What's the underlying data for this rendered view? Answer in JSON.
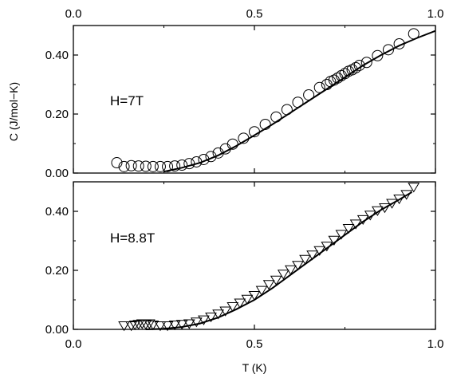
{
  "chart_data": [
    {
      "type": "scatter",
      "panel": "top",
      "annotation": "H=7T",
      "xlabel": "",
      "ylabel": "C (J/mol−K)",
      "xlim": [
        0.0,
        1.0
      ],
      "ylim": [
        0.0,
        0.5
      ],
      "x_ticks": [
        "0.0",
        "0.5",
        "1.0"
      ],
      "x_tick_values": [
        0.0,
        0.5,
        1.0
      ],
      "y_ticks": [
        "0.00",
        "0.20",
        "0.40"
      ],
      "y_tick_values": [
        0.0,
        0.2,
        0.4
      ],
      "grid": false,
      "marker": "circle",
      "series": [
        {
          "kind": "points",
          "x": [
            0.12,
            0.14,
            0.16,
            0.18,
            0.2,
            0.22,
            0.24,
            0.26,
            0.28,
            0.3,
            0.32,
            0.34,
            0.36,
            0.38,
            0.4,
            0.42,
            0.44,
            0.47,
            0.5,
            0.53,
            0.56,
            0.59,
            0.62,
            0.65,
            0.68,
            0.7,
            0.71,
            0.72,
            0.73,
            0.74,
            0.75,
            0.76,
            0.77,
            0.78,
            0.79,
            0.81,
            0.84,
            0.87,
            0.9,
            0.94
          ],
          "y": [
            0.035,
            0.022,
            0.025,
            0.024,
            0.023,
            0.022,
            0.022,
            0.022,
            0.024,
            0.027,
            0.032,
            0.038,
            0.046,
            0.056,
            0.068,
            0.082,
            0.098,
            0.118,
            0.14,
            0.165,
            0.19,
            0.215,
            0.24,
            0.265,
            0.29,
            0.3,
            0.31,
            0.315,
            0.322,
            0.33,
            0.337,
            0.345,
            0.35,
            0.357,
            0.365,
            0.375,
            0.398,
            0.418,
            0.438,
            0.472
          ]
        },
        {
          "kind": "fit-line",
          "x": [
            0.25,
            0.3,
            0.35,
            0.4,
            0.45,
            0.5,
            0.55,
            0.6,
            0.65,
            0.7,
            0.75,
            0.8,
            0.85,
            0.9,
            0.95,
            1.0
          ],
          "y": [
            0.005,
            0.018,
            0.035,
            0.06,
            0.092,
            0.128,
            0.165,
            0.205,
            0.245,
            0.285,
            0.325,
            0.365,
            0.4,
            0.432,
            0.458,
            0.482
          ]
        }
      ]
    },
    {
      "type": "scatter",
      "panel": "bottom",
      "annotation": "H=8.8T",
      "xlabel": "T (K)",
      "ylabel": "",
      "xlim": [
        0.0,
        1.0
      ],
      "ylim": [
        0.0,
        0.5
      ],
      "x_ticks": [
        "0.0",
        "0.5",
        "1.0"
      ],
      "x_tick_values": [
        0.0,
        0.5,
        1.0
      ],
      "y_ticks": [
        "0.00",
        "0.20",
        "0.40"
      ],
      "y_tick_values": [
        0.0,
        0.2,
        0.4
      ],
      "grid": false,
      "marker": "triangle-down",
      "series": [
        {
          "kind": "points",
          "x": [
            0.14,
            0.16,
            0.17,
            0.18,
            0.19,
            0.2,
            0.21,
            0.22,
            0.24,
            0.26,
            0.28,
            0.3,
            0.32,
            0.34,
            0.36,
            0.38,
            0.4,
            0.42,
            0.44,
            0.46,
            0.48,
            0.5,
            0.52,
            0.54,
            0.56,
            0.58,
            0.6,
            0.62,
            0.64,
            0.66,
            0.68,
            0.7,
            0.72,
            0.74,
            0.76,
            0.78,
            0.8,
            0.82,
            0.84,
            0.86,
            0.88,
            0.9,
            0.92,
            0.94
          ],
          "y": [
            0.015,
            0.015,
            0.018,
            0.02,
            0.022,
            0.02,
            0.022,
            0.018,
            0.015,
            0.015,
            0.018,
            0.02,
            0.022,
            0.028,
            0.035,
            0.045,
            0.055,
            0.065,
            0.08,
            0.092,
            0.105,
            0.118,
            0.135,
            0.155,
            0.17,
            0.19,
            0.205,
            0.22,
            0.24,
            0.255,
            0.27,
            0.285,
            0.305,
            0.325,
            0.345,
            0.36,
            0.375,
            0.39,
            0.405,
            0.415,
            0.43,
            0.445,
            0.46,
            0.485
          ]
        },
        {
          "kind": "fit-line",
          "x": [
            0.2,
            0.25,
            0.3,
            0.35,
            0.4,
            0.45,
            0.5,
            0.55,
            0.6,
            0.65,
            0.7,
            0.75,
            0.8,
            0.85,
            0.9,
            0.935
          ],
          "y": [
            0.0,
            0.002,
            0.008,
            0.02,
            0.04,
            0.068,
            0.1,
            0.14,
            0.185,
            0.23,
            0.275,
            0.32,
            0.365,
            0.405,
            0.44,
            0.465
          ]
        }
      ]
    }
  ]
}
